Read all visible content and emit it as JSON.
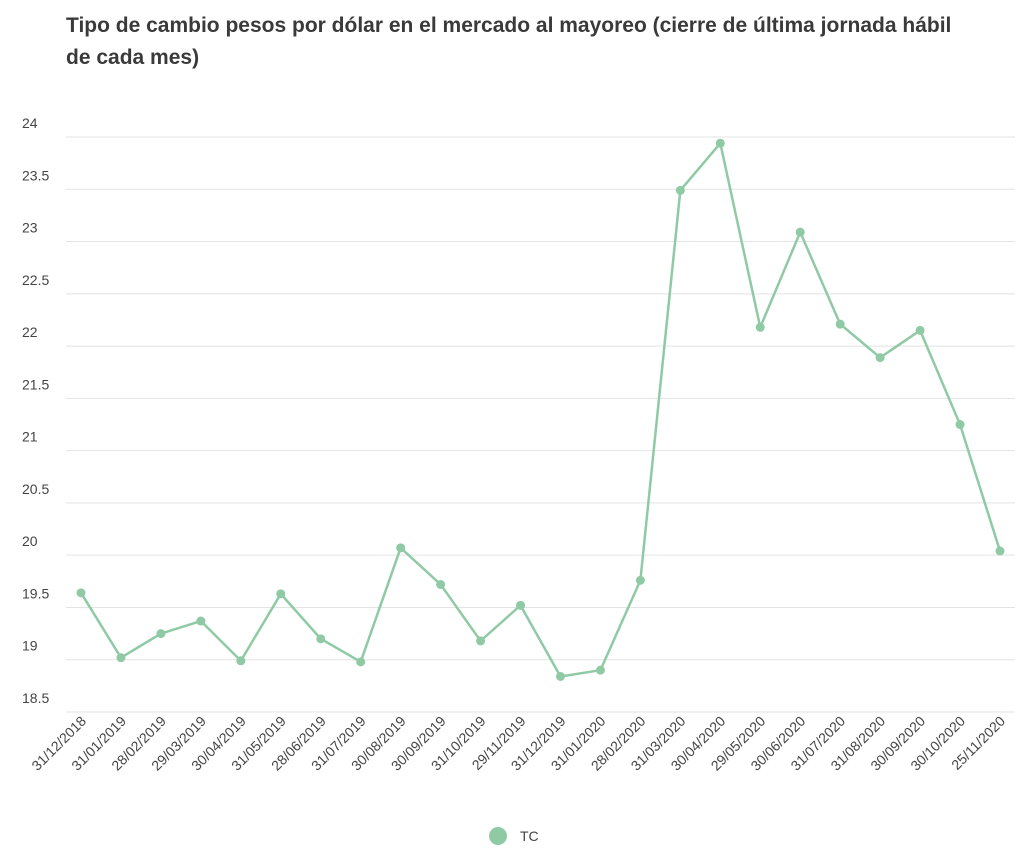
{
  "chart_data": {
    "type": "line",
    "title": "Tipo de cambio pesos por dólar en el mercado al mayoreo (cierre de última jornada hábil de cada mes)",
    "x": [
      "31/12/2018",
      "31/01/2019",
      "28/02/2019",
      "29/03/2019",
      "30/04/2019",
      "31/05/2019",
      "28/06/2019",
      "31/07/2019",
      "30/08/2019",
      "30/09/2019",
      "31/10/2019",
      "29/11/2019",
      "31/12/2019",
      "31/01/2020",
      "28/02/2020",
      "31/03/2020",
      "30/04/2020",
      "29/05/2020",
      "30/06/2020",
      "31/07/2020",
      "31/08/2020",
      "30/09/2020",
      "30/10/2020",
      "25/11/2020"
    ],
    "series": [
      {
        "name": "TC",
        "color": "#8fcaa5",
        "values": [
          19.64,
          19.02,
          19.25,
          19.37,
          18.99,
          19.63,
          19.2,
          18.98,
          20.07,
          19.72,
          19.18,
          19.52,
          18.84,
          18.9,
          19.76,
          23.49,
          23.94,
          22.18,
          23.09,
          22.21,
          21.89,
          22.15,
          21.25,
          20.04
        ]
      }
    ],
    "ylim": [
      18.5,
      24
    ],
    "yticks": [
      18.5,
      19,
      19.5,
      20,
      20.5,
      21,
      21.5,
      22,
      22.5,
      23,
      23.5,
      24
    ],
    "grid": true,
    "legend": "bottom"
  }
}
